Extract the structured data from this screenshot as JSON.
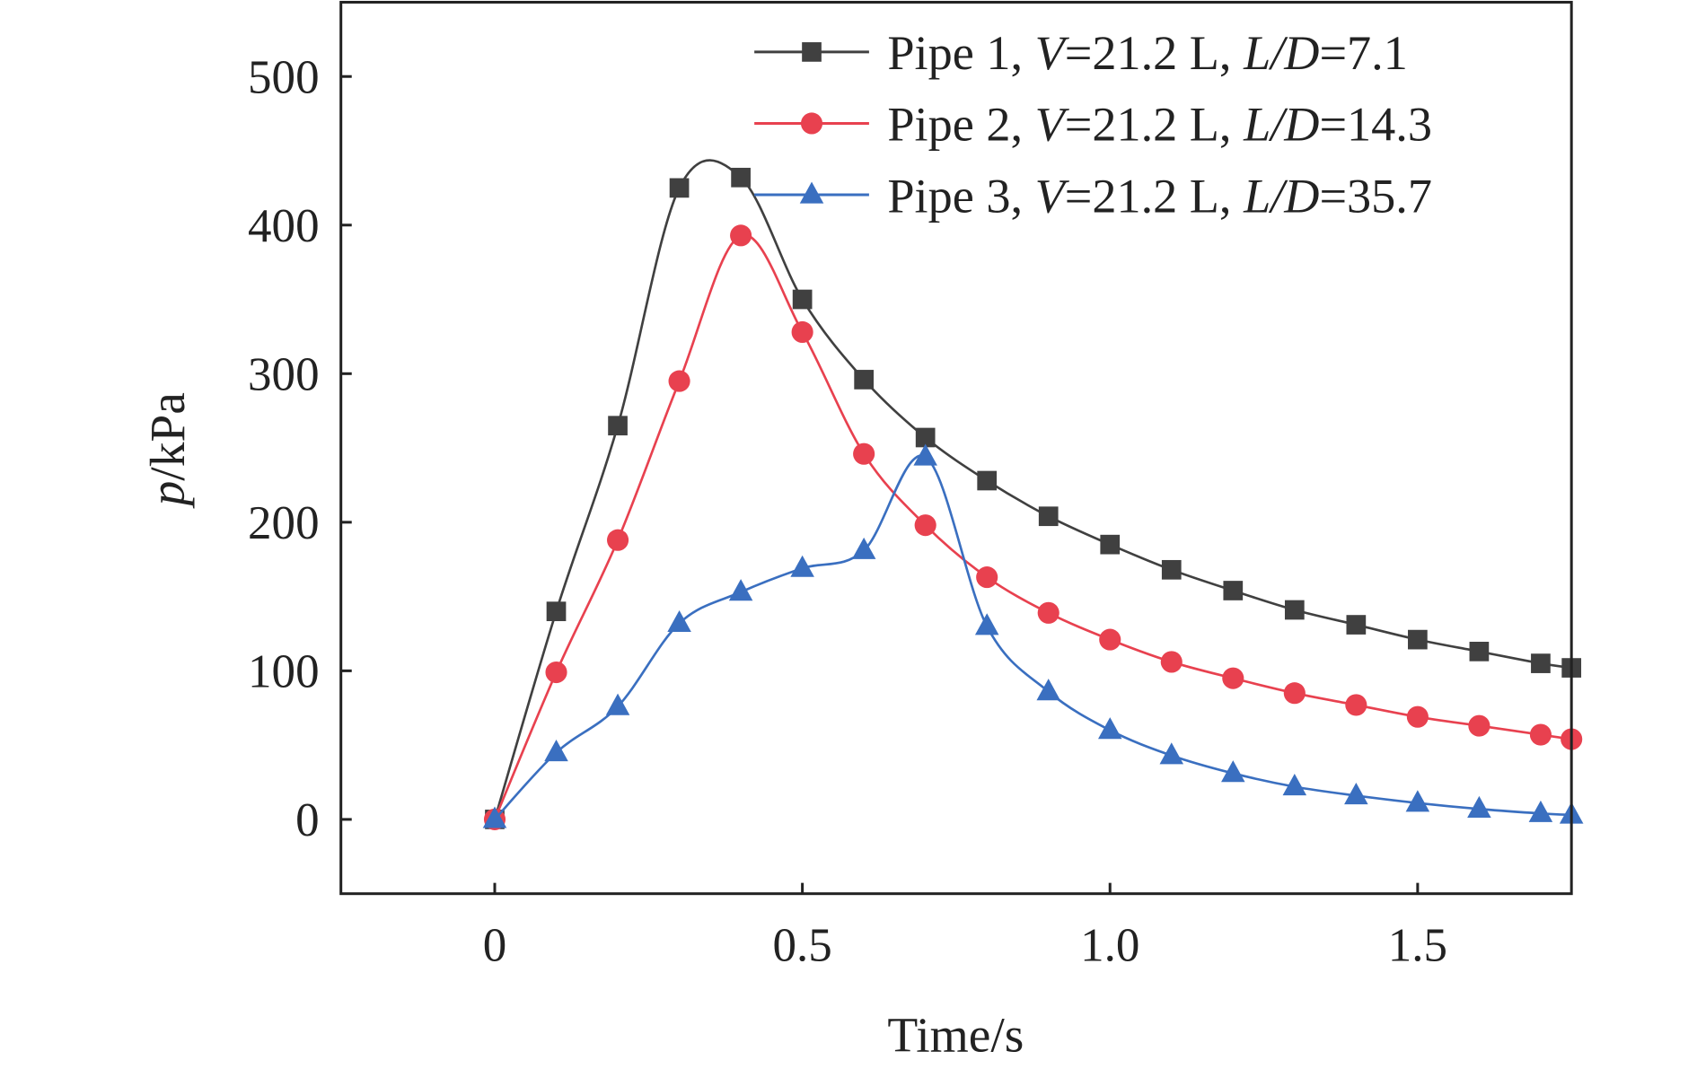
{
  "chart_data": {
    "type": "line",
    "xlabel": "Time/s",
    "ylabel_italic": "p",
    "ylabel_unit": "/kPa",
    "xlim": [
      -0.25,
      1.75
    ],
    "ylim": [
      -50,
      550
    ],
    "xticks": [
      0,
      0.5,
      1.0,
      1.5
    ],
    "xtick_labels": [
      "0",
      "0.5",
      "1.0",
      "1.5"
    ],
    "yticks": [
      0,
      100,
      200,
      300,
      400,
      500
    ],
    "ytick_labels": [
      "0",
      "100",
      "200",
      "300",
      "400",
      "500"
    ],
    "grid": false,
    "legend_position": "top-right",
    "x": [
      0,
      0.1,
      0.2,
      0.3,
      0.4,
      0.5,
      0.6,
      0.7,
      0.8,
      0.9,
      1.0,
      1.1,
      1.2,
      1.3,
      1.4,
      1.5,
      1.6,
      1.7,
      1.75
    ],
    "series": [
      {
        "name": "Pipe 1, V=21.2 L, L/D=7.1",
        "legend": {
          "prefix": "Pipe 1, ",
          "v": "V",
          "mid": "=21.2 L, ",
          "ld": "L/D",
          "suffix": "=7.1"
        },
        "color": "#404040",
        "marker": "square",
        "values": [
          0,
          140,
          265,
          425,
          432,
          350,
          296,
          257,
          228,
          204,
          185,
          168,
          154,
          141,
          131,
          121,
          113,
          105,
          102
        ]
      },
      {
        "name": "Pipe 2, V=21.2 L, L/D=14.3",
        "legend": {
          "prefix": "Pipe 2, ",
          "v": "V",
          "mid": "=21.2 L, ",
          "ld": "L/D",
          "suffix": "=14.3"
        },
        "color": "#e8414f",
        "marker": "circle",
        "values": [
          0,
          99,
          188,
          295,
          393,
          328,
          246,
          198,
          163,
          139,
          121,
          106,
          95,
          85,
          77,
          69,
          63,
          57,
          54
        ]
      },
      {
        "name": "Pipe 3, V=21.2 L, L/D=35.7",
        "legend": {
          "prefix": "Pipe 3, ",
          "v": "V",
          "mid": "=21.2 L, ",
          "ld": "L/D",
          "suffix": "=35.7"
        },
        "color": "#3a6fc0",
        "marker": "triangle",
        "values": [
          0,
          45,
          76,
          132,
          153,
          169,
          181,
          244,
          130,
          86,
          60,
          43,
          31,
          22,
          16,
          11,
          7,
          4,
          3
        ]
      }
    ]
  }
}
